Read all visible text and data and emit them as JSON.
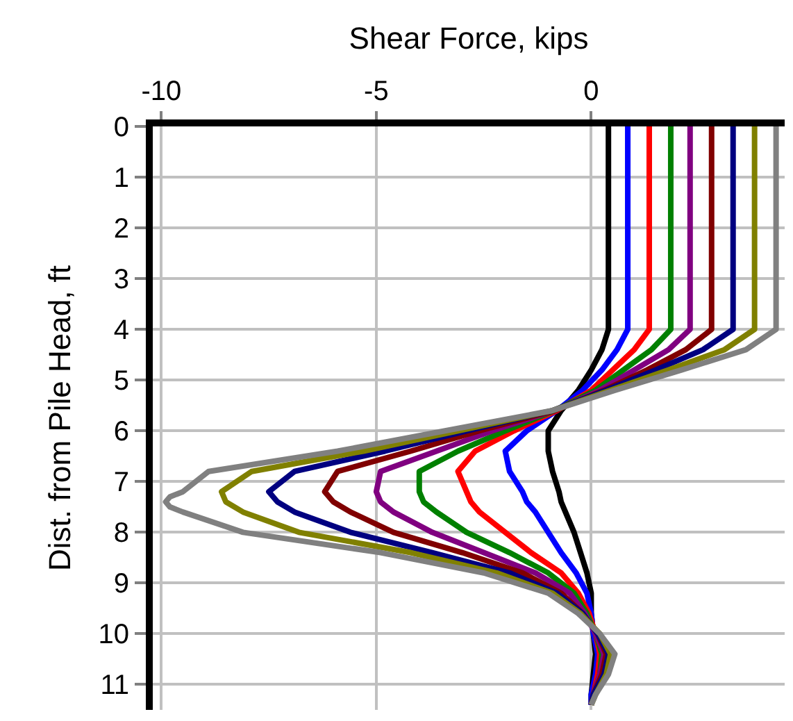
{
  "chart_data": {
    "type": "line",
    "xlabel": "Shear Force, kips",
    "ylabel": "Dist. from Pile Head, ft",
    "xlim": [
      -10.2,
      4.5
    ],
    "xticks": [
      -10,
      -5,
      0
    ],
    "ylim": [
      11.5,
      0
    ],
    "yticks": [
      0,
      1,
      2,
      3,
      4,
      5,
      6,
      7,
      8,
      9,
      10,
      11
    ],
    "grid": true,
    "marker": "none",
    "line_style": "solid",
    "series": [
      {
        "color": "#000000",
        "x": [
          0.4,
          0.4,
          0.25,
          0.0,
          -0.3,
          -0.7,
          -1.0,
          -1.0,
          -0.9,
          -0.75,
          -0.7,
          -0.6,
          -0.4,
          -0.25,
          -0.1,
          0,
          0,
          0.05,
          0.1,
          0.05,
          0,
          0
        ],
        "values": [
          0,
          4.0,
          4.4,
          4.8,
          5.2,
          5.6,
          6.0,
          6.4,
          6.8,
          7.2,
          7.4,
          7.6,
          8.0,
          8.4,
          8.8,
          9.2,
          9.6,
          10.0,
          10.4,
          10.8,
          11.2,
          11.4
        ]
      },
      {
        "color": "#0000ff",
        "x": [
          0.85,
          0.85,
          0.6,
          0.25,
          -0.2,
          -0.8,
          -1.5,
          -2.0,
          -1.9,
          -1.6,
          -1.5,
          -1.3,
          -1.0,
          -0.7,
          -0.35,
          -0.1,
          0,
          0.05,
          0.15,
          0.1,
          0,
          0
        ],
        "values": [
          0,
          4.0,
          4.4,
          4.8,
          5.2,
          5.6,
          6.0,
          6.4,
          6.8,
          7.2,
          7.4,
          7.6,
          8.0,
          8.4,
          8.8,
          9.2,
          9.6,
          10.0,
          10.4,
          10.8,
          11.2,
          11.4
        ]
      },
      {
        "color": "#ff0000",
        "x": [
          1.35,
          1.35,
          1.0,
          0.5,
          0,
          -0.8,
          -1.8,
          -2.7,
          -3.1,
          -2.9,
          -2.8,
          -2.6,
          -2.0,
          -1.4,
          -0.7,
          -0.3,
          -0.05,
          0.1,
          0.2,
          0.15,
          0.05,
          0
        ],
        "values": [
          0,
          4.0,
          4.4,
          4.8,
          5.2,
          5.6,
          6.0,
          6.4,
          6.8,
          7.2,
          7.4,
          7.6,
          8.0,
          8.4,
          8.8,
          9.2,
          9.6,
          10.0,
          10.4,
          10.8,
          11.2,
          11.4
        ]
      },
      {
        "color": "#008000",
        "x": [
          1.85,
          1.85,
          1.4,
          0.75,
          0.1,
          -0.85,
          -2.0,
          -3.1,
          -4.0,
          -4.0,
          -3.9,
          -3.6,
          -2.9,
          -1.9,
          -1.0,
          -0.4,
          -0.1,
          0.1,
          0.25,
          0.2,
          0.05,
          0
        ],
        "values": [
          0,
          4.0,
          4.4,
          4.8,
          5.2,
          5.6,
          6.0,
          6.4,
          6.8,
          7.2,
          7.4,
          7.6,
          8.0,
          8.4,
          8.8,
          9.2,
          9.6,
          10.0,
          10.4,
          10.8,
          11.2,
          11.4
        ]
      },
      {
        "color": "#800080",
        "x": [
          2.3,
          2.3,
          1.8,
          1.0,
          0.2,
          -0.85,
          -2.3,
          -3.6,
          -4.9,
          -5.0,
          -4.9,
          -4.6,
          -3.7,
          -2.5,
          -1.3,
          -0.5,
          -0.15,
          0.1,
          0.3,
          0.2,
          0.05,
          0
        ],
        "values": [
          0,
          4.0,
          4.4,
          4.8,
          5.2,
          5.6,
          6.0,
          6.4,
          6.8,
          7.2,
          7.4,
          7.6,
          8.0,
          8.4,
          8.8,
          9.2,
          9.6,
          10.0,
          10.4,
          10.8,
          11.2,
          11.4
        ]
      },
      {
        "color": "#800000",
        "x": [
          2.8,
          2.8,
          2.2,
          1.3,
          0.3,
          -0.85,
          -2.6,
          -4.2,
          -5.9,
          -6.2,
          -6.0,
          -5.6,
          -4.6,
          -3.0,
          -1.6,
          -0.7,
          -0.2,
          0.15,
          0.35,
          0.25,
          0.05,
          0
        ],
        "values": [
          0,
          4.0,
          4.4,
          4.8,
          5.2,
          5.6,
          6.0,
          6.4,
          6.8,
          7.2,
          7.4,
          7.6,
          8.0,
          8.4,
          8.8,
          9.2,
          9.6,
          10.0,
          10.4,
          10.8,
          11.2,
          11.4
        ]
      },
      {
        "color": "#000080",
        "x": [
          3.3,
          3.3,
          2.6,
          1.5,
          0.35,
          -0.9,
          -2.9,
          -4.8,
          -6.9,
          -7.5,
          -7.3,
          -6.9,
          -5.6,
          -3.7,
          -1.9,
          -0.8,
          -0.2,
          0.15,
          0.4,
          0.3,
          0.05,
          0
        ],
        "values": [
          0,
          4.0,
          4.4,
          4.8,
          5.2,
          5.6,
          6.0,
          6.4,
          6.8,
          7.2,
          7.4,
          7.6,
          8.0,
          8.4,
          8.8,
          9.2,
          9.6,
          10.0,
          10.4,
          10.8,
          11.2,
          11.4
        ]
      },
      {
        "color": "#808000",
        "x": [
          3.8,
          3.8,
          3.1,
          1.8,
          0.45,
          -0.9,
          -3.1,
          -5.3,
          -7.9,
          -8.6,
          -8.5,
          -8.1,
          -6.8,
          -4.2,
          -2.2,
          -0.9,
          -0.25,
          0.2,
          0.45,
          0.35,
          0.1,
          0
        ],
        "values": [
          0,
          4.0,
          4.4,
          4.8,
          5.2,
          5.6,
          6.0,
          6.4,
          6.8,
          7.2,
          7.4,
          7.6,
          8.0,
          8.4,
          8.8,
          9.2,
          9.6,
          10.0,
          10.4,
          10.8,
          11.2,
          11.4
        ]
      },
      {
        "color": "#808080",
        "x": [
          4.3,
          4.3,
          3.6,
          2.1,
          0.55,
          -0.9,
          -3.4,
          -5.9,
          -8.9,
          -9.5,
          -9.8,
          -9.9,
          -9.8,
          -9.5,
          -8.1,
          -4.9,
          -2.5,
          -1.0,
          -0.3,
          0.2,
          0.55,
          0.4,
          0.1,
          0
        ],
        "values": [
          0,
          4.0,
          4.4,
          4.8,
          5.2,
          5.6,
          6.0,
          6.4,
          6.8,
          7.2,
          7.3,
          7.4,
          7.5,
          7.6,
          8.0,
          8.4,
          8.8,
          9.2,
          9.6,
          10.0,
          10.4,
          10.8,
          11.2,
          11.4
        ]
      }
    ]
  }
}
